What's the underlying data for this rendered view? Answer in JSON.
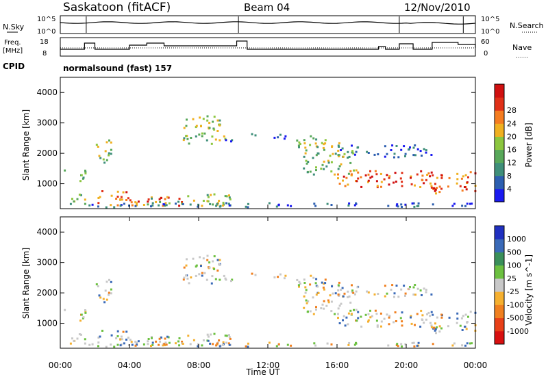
{
  "header": {
    "station": "Saskatoon (fitACF)",
    "beam": "Beam 04",
    "date": "12/Nov/2010"
  },
  "noise_panel": {
    "left_label": "N.Sky",
    "left_top": "10^5",
    "left_bottom": "10^0",
    "right_top": "10^5",
    "right_bottom": "10^0",
    "right_label": "N.Search"
  },
  "freq_panel": {
    "left_label_1": "Freq.",
    "left_label_2": "[MHz]",
    "left_top": "18",
    "left_bottom": "8",
    "right_top": "60",
    "right_bottom": "0",
    "right_label": "Nave",
    "cpid_label": "CPID",
    "cpid_text": "normalsound (fast) 157"
  },
  "chart_data": [
    {
      "type": "heatmap",
      "panel": "power",
      "ylabel": "Slant Range [km]",
      "yticks": [
        "1000",
        "2000",
        "3000",
        "4000"
      ],
      "ylim": [
        180,
        4500
      ],
      "xlim": [
        0,
        24
      ],
      "colorbar_label": "Power [dB]",
      "colorbar_ticks": [
        "4",
        "8",
        "12",
        "16",
        "20",
        "24",
        "28"
      ],
      "colorbar_colors": [
        "#1a1af0",
        "#2d5fb0",
        "#3f8f7a",
        "#58a85a",
        "#8cc63f",
        "#f0b020",
        "#f57c20",
        "#e03018",
        "#d01010"
      ]
    },
    {
      "type": "heatmap",
      "panel": "velocity",
      "ylabel": "Slant Range [km]",
      "yticks": [
        "1000",
        "2000",
        "3000",
        "4000"
      ],
      "ylim": [
        180,
        4500
      ],
      "xlim": [
        0,
        24
      ],
      "xlabel": "Time UT",
      "xticks": [
        "00:00",
        "04:00",
        "08:00",
        "12:00",
        "16:00",
        "20:00",
        "00:00"
      ],
      "colorbar_label": "Velocity [m s^-1]",
      "colorbar_ticks": [
        "1000",
        "500",
        "100",
        "25",
        "-25",
        "-100",
        "-500",
        "-1000"
      ],
      "colorbar_colors": [
        "#2030c0",
        "#3a6ab8",
        "#3a8f5a",
        "#6cc040",
        "#c8c8c8",
        "#f5b030",
        "#f08020",
        "#e84018",
        "#d81010"
      ]
    }
  ]
}
